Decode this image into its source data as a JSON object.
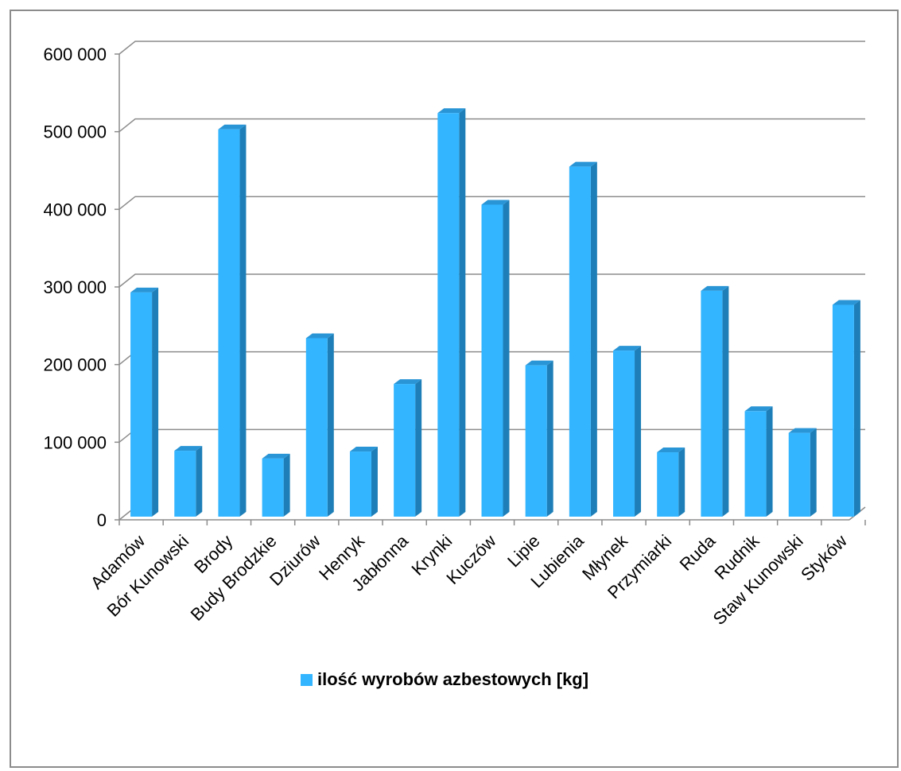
{
  "chart_data": {
    "type": "bar",
    "categories": [
      "Adamów",
      "Bór Kunowski",
      "Brody",
      "Budy Brodzkie",
      "Dziurów",
      "Henryk",
      "Jabłonna",
      "Krynki",
      "Kuczów",
      "Lipie",
      "Lubienia",
      "Młynek",
      "Przymiarki",
      "Ruda",
      "Rudnik",
      "Staw Kunowski",
      "Styków"
    ],
    "series": [
      {
        "name": "ilość wyrobów azbestowych [kg]",
        "values": [
          293000,
          89000,
          503000,
          79000,
          234000,
          88000,
          175000,
          524000,
          406000,
          199000,
          455000,
          218000,
          87000,
          295000,
          140000,
          112000,
          277000
        ]
      }
    ],
    "yticks": [
      "0",
      "100 000",
      "200 000",
      "300 000",
      "400 000",
      "500 000",
      "600 000"
    ],
    "ylim": [
      0,
      600000
    ],
    "grid": true,
    "legend_position": "bottom",
    "style": "3d-column",
    "colors": {
      "bar_front": "#33b5ff",
      "bar_side": "#1e7fb8",
      "bar_top": "#2a95d6",
      "grid": "#8c8c8c"
    }
  }
}
